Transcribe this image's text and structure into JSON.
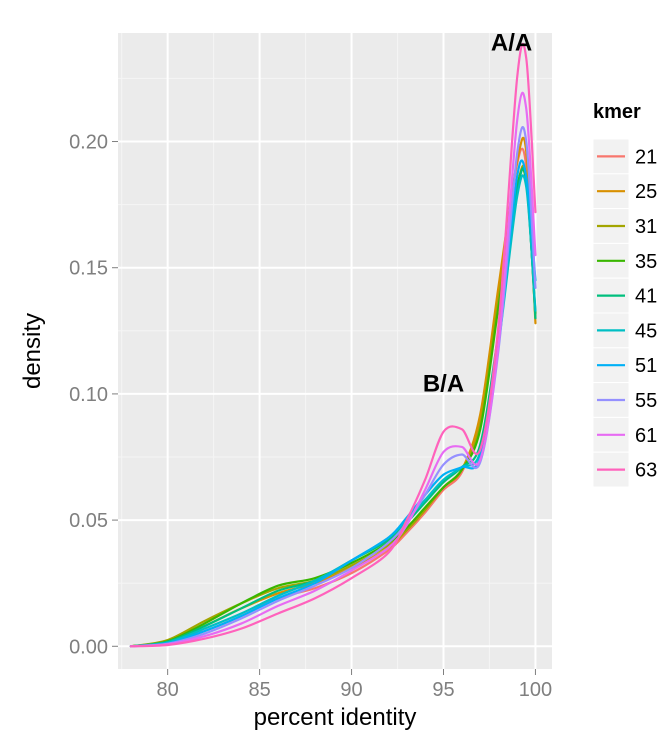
{
  "chart_data": {
    "type": "line",
    "xlabel": "percent identity",
    "ylabel": "density",
    "xlim": [
      77.3,
      100.9
    ],
    "ylim": [
      -0.009,
      0.243
    ],
    "x_ticks": [
      80,
      85,
      90,
      95,
      100
    ],
    "x_tick_labels": [
      "80",
      "85",
      "90",
      "95",
      "100"
    ],
    "y_ticks": [
      0.0,
      0.05,
      0.1,
      0.15,
      0.2
    ],
    "y_tick_labels": [
      "0.00",
      "0.05",
      "0.10",
      "0.15",
      "0.20"
    ],
    "grid": true,
    "background": "#ebebeb",
    "legend": {
      "title": "kmer",
      "placement": "right"
    },
    "annotations": [
      {
        "text": "A/A",
        "x": 98.7,
        "y": 0.236
      },
      {
        "text": "B/A",
        "x": 95.0,
        "y": 0.101
      }
    ],
    "x": [
      78,
      80,
      82,
      84,
      86,
      88,
      90,
      92,
      93,
      94,
      95,
      96,
      97,
      98,
      99,
      99.5,
      100
    ],
    "series": [
      {
        "name": "21",
        "color": "#F8766D",
        "values": [
          0.0,
          0.0015,
          0.006,
          0.012,
          0.019,
          0.023,
          0.029,
          0.038,
          0.045,
          0.053,
          0.062,
          0.069,
          0.09,
          0.14,
          0.191,
          0.19,
          0.13
        ]
      },
      {
        "name": "25",
        "color": "#D89000",
        "values": [
          0.0,
          0.002,
          0.008,
          0.015,
          0.021,
          0.025,
          0.031,
          0.039,
          0.046,
          0.054,
          0.063,
          0.07,
          0.092,
          0.143,
          0.192,
          0.196,
          0.128
        ]
      },
      {
        "name": "31",
        "color": "#A3A500",
        "values": [
          0.0,
          0.0025,
          0.01,
          0.017,
          0.023,
          0.026,
          0.032,
          0.04,
          0.046,
          0.054,
          0.063,
          0.07,
          0.088,
          0.138,
          0.182,
          0.186,
          0.13
        ]
      },
      {
        "name": "35",
        "color": "#39B600",
        "values": [
          0.0,
          0.002,
          0.009,
          0.017,
          0.024,
          0.027,
          0.033,
          0.041,
          0.047,
          0.055,
          0.063,
          0.07,
          0.086,
          0.135,
          0.182,
          0.184,
          0.132
        ]
      },
      {
        "name": "41",
        "color": "#00BF7D",
        "values": [
          0.0,
          0.0018,
          0.008,
          0.015,
          0.022,
          0.026,
          0.034,
          0.042,
          0.049,
          0.057,
          0.065,
          0.071,
          0.08,
          0.125,
          0.18,
          0.185,
          0.13
        ]
      },
      {
        "name": "45",
        "color": "#00BFC4",
        "values": [
          0.0,
          0.0015,
          0.007,
          0.013,
          0.02,
          0.026,
          0.034,
          0.043,
          0.05,
          0.058,
          0.066,
          0.071,
          0.077,
          0.12,
          0.178,
          0.182,
          0.133
        ]
      },
      {
        "name": "51",
        "color": "#00B0F6",
        "values": [
          0.0,
          0.0012,
          0.006,
          0.012,
          0.019,
          0.025,
          0.034,
          0.043,
          0.051,
          0.06,
          0.068,
          0.071,
          0.075,
          0.12,
          0.186,
          0.186,
          0.145
        ]
      },
      {
        "name": "55",
        "color": "#9590FF",
        "values": [
          0.0,
          0.001,
          0.005,
          0.011,
          0.018,
          0.024,
          0.031,
          0.041,
          0.049,
          0.06,
          0.072,
          0.076,
          0.073,
          0.118,
          0.195,
          0.2,
          0.142
        ]
      },
      {
        "name": "61",
        "color": "#E76BF3",
        "values": [
          0.0,
          0.0008,
          0.004,
          0.009,
          0.016,
          0.022,
          0.03,
          0.039,
          0.048,
          0.062,
          0.077,
          0.079,
          0.074,
          0.12,
          0.208,
          0.213,
          0.155
        ]
      },
      {
        "name": "63",
        "color": "#FF62BC",
        "values": [
          0.0,
          0.0005,
          0.003,
          0.007,
          0.013,
          0.019,
          0.027,
          0.037,
          0.05,
          0.066,
          0.085,
          0.086,
          0.078,
          0.128,
          0.225,
          0.233,
          0.172
        ]
      }
    ]
  }
}
